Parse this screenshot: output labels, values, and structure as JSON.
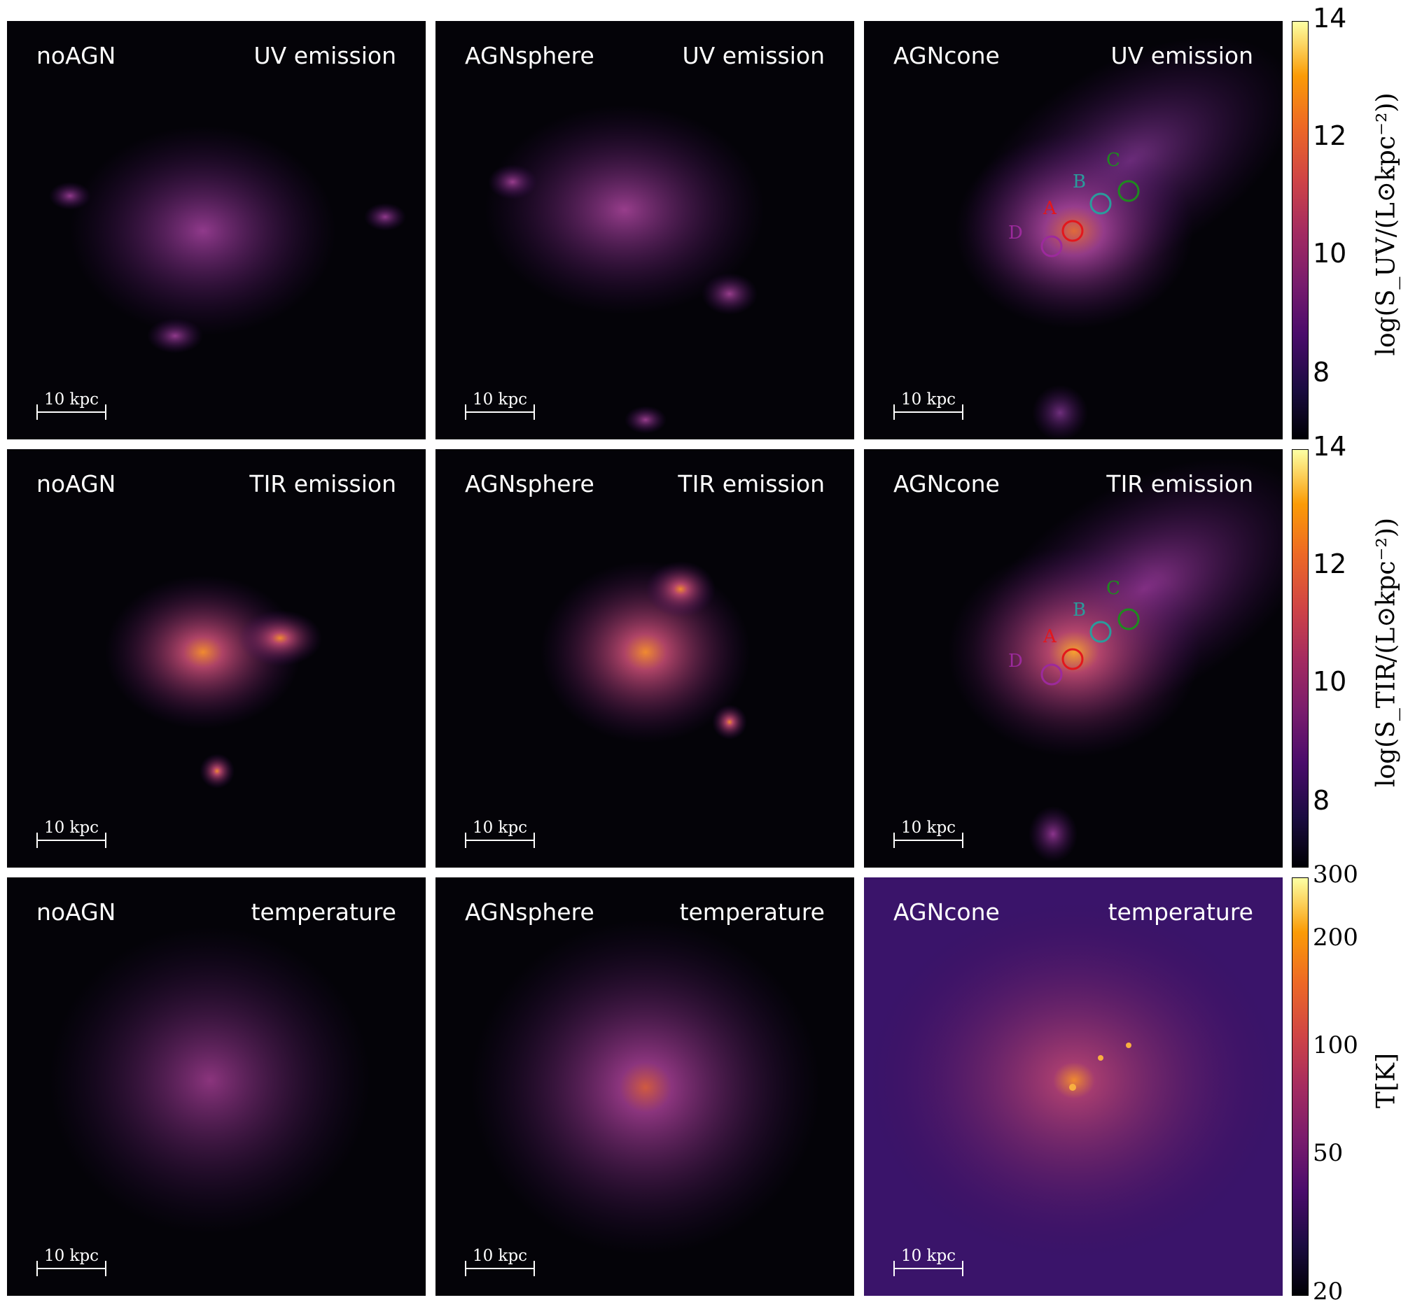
{
  "rows": [
    {
      "quantity": "UV emission",
      "cbar_label": "log(S_UV/(L⊙kpc⁻²))",
      "ticks": [
        "14",
        "12",
        "10",
        "8"
      ]
    },
    {
      "quantity": "TIR emission",
      "cbar_label": "log(S_TIR/(L⊙kpc⁻²))",
      "ticks": [
        "14",
        "12",
        "10",
        "8"
      ]
    },
    {
      "quantity": "temperature",
      "cbar_label": "T[K]",
      "ticks": [
        "300",
        "200",
        "100",
        "50",
        "20"
      ]
    }
  ],
  "models": [
    "noAGN",
    "AGNsphere",
    "AGNcone"
  ],
  "scalebar_label": "10 kpc",
  "markers": [
    {
      "letter": "A",
      "color": "#e3171c"
    },
    {
      "letter": "B",
      "color": "#2a9c9c"
    },
    {
      "letter": "C",
      "color": "#1f8a1f"
    },
    {
      "letter": "D",
      "color": "#9c2a9c"
    }
  ],
  "colors": {
    "background": "#040308",
    "glow": "#fb9b06",
    "mid": "#781c6d"
  }
}
